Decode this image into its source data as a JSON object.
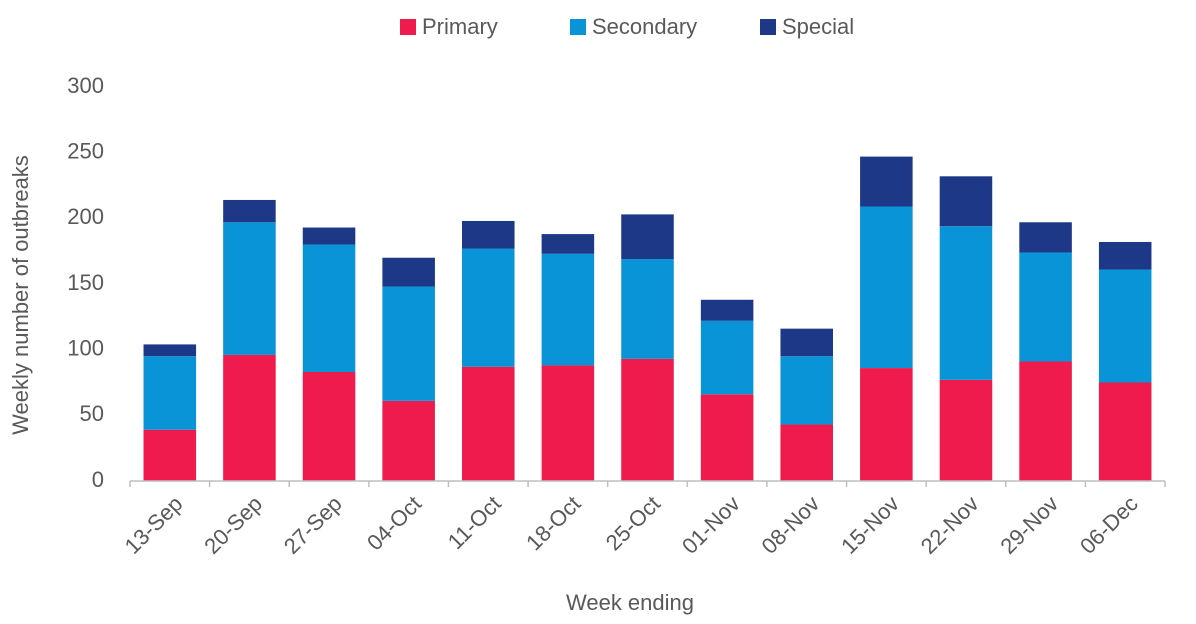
{
  "chart_data": {
    "type": "stacked_bar",
    "x_label": "Week ending",
    "y_label": "Weekly number of outbreaks",
    "categories": [
      "13-Sep",
      "20-Sep",
      "27-Sep",
      "04-Oct",
      "11-Oct",
      "18-Oct",
      "25-Oct",
      "01-Nov",
      "08-Nov",
      "15-Nov",
      "22-Nov",
      "29-Nov",
      "06-Dec"
    ],
    "series": [
      {
        "name": "Primary",
        "color": "#ee1b4c",
        "values": [
          39,
          96,
          83,
          61,
          87,
          88,
          93,
          66,
          43,
          86,
          77,
          91,
          75
        ]
      },
      {
        "name": "Secondary",
        "color": "#0a94d8",
        "values": [
          56,
          101,
          97,
          87,
          90,
          85,
          76,
          56,
          52,
          123,
          117,
          83,
          86
        ]
      },
      {
        "name": "Special",
        "color": "#1e3888",
        "values": [
          9,
          17,
          13,
          22,
          21,
          15,
          34,
          16,
          21,
          38,
          38,
          23,
          21
        ]
      }
    ],
    "ylim": [
      0,
      300
    ],
    "yticks": [
      0,
      50,
      100,
      150,
      200,
      250,
      300
    ],
    "legend": "top"
  }
}
